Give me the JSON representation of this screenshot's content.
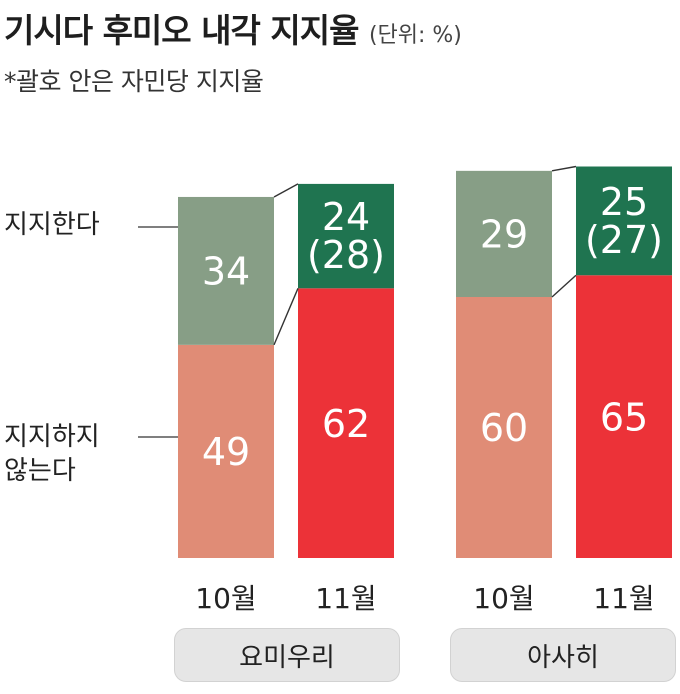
{
  "title": "기시다 후미오 내각 지지율",
  "unit": "(단위: %)",
  "subtitle": "*괄호 안은 자민당 지지율",
  "legend": {
    "support_line1": "지지한다",
    "oppose_line1": "지지하지",
    "oppose_line2": "않는다"
  },
  "groups": [
    {
      "name": "요미우리"
    },
    {
      "name": "아사히"
    }
  ],
  "chart_data": {
    "type": "bar",
    "stacked": true,
    "title": "기시다 후미오 내각 지지율",
    "subtitle": "*괄호 안은 자민당 지지율",
    "unit": "(단위: %)",
    "categories": [
      {
        "group": "요미우리",
        "month": "10월"
      },
      {
        "group": "요미우리",
        "month": "11월"
      },
      {
        "group": "아사히",
        "month": "10월"
      },
      {
        "group": "아사히",
        "month": "11월"
      }
    ],
    "series": [
      {
        "name": "지지하지 않는다",
        "values": [
          49,
          62,
          60,
          65
        ],
        "colors": [
          "#e08c76",
          "#ec3238",
          "#e08c76",
          "#ec3238"
        ]
      },
      {
        "name": "지지한다",
        "values": [
          34,
          24,
          29,
          25
        ],
        "colors": [
          "#879e86",
          "#1f7450",
          "#879e86",
          "#1f7450"
        ]
      }
    ],
    "party_support": [
      null,
      28,
      null,
      27
    ],
    "party_support_labels": [
      "",
      "(28)",
      "",
      "(27)"
    ],
    "ylim": [
      0,
      100
    ],
    "legend_position": "left"
  }
}
